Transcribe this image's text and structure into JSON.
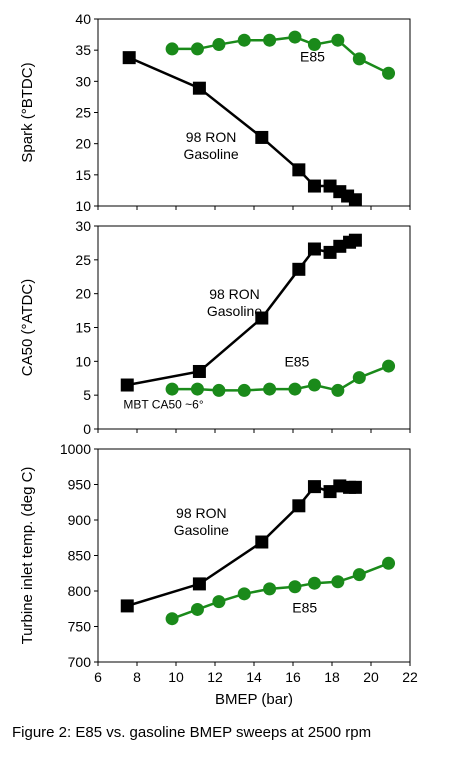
{
  "figure": {
    "caption": "Figure 2: E85 vs. gasoline BMEP sweeps at 2500 rpm",
    "colors": {
      "gasoline": "#000000",
      "e85": "#1a8a1a"
    }
  },
  "chart_data": [
    {
      "type": "line",
      "title": "",
      "xlabel": "",
      "ylabel": "Spark (°BTDC)",
      "xlim": [
        6,
        22
      ],
      "ylim": [
        10,
        40
      ],
      "yticks": [
        10,
        15,
        20,
        25,
        30,
        35,
        40
      ],
      "grid": false,
      "series": [
        {
          "key": "gasoline",
          "x": [
            7.6,
            11.2,
            14.4,
            16.3,
            17.1,
            17.9,
            18.4,
            18.8,
            19.2
          ],
          "y": [
            33.8,
            28.9,
            21.0,
            15.8,
            13.2,
            13.2,
            12.3,
            11.6,
            11.0
          ]
        },
        {
          "key": "e85",
          "x": [
            9.8,
            11.1,
            12.2,
            13.5,
            14.8,
            16.1,
            17.1,
            18.3,
            19.4,
            20.9
          ],
          "y": [
            35.2,
            35.2,
            35.9,
            36.6,
            36.6,
            37.1,
            35.9,
            36.6,
            33.6,
            31.3
          ]
        }
      ],
      "annotations": [
        {
          "key": "e85",
          "lines": [
            "E85"
          ],
          "x": 17.0,
          "y": 33.2
        },
        {
          "key": "gasoline",
          "lines": [
            "98 RON",
            "Gasoline"
          ],
          "x": 11.8,
          "y": 20.3
        }
      ]
    },
    {
      "type": "line",
      "title": "",
      "xlabel": "",
      "ylabel": "CA50 (°ATDC)",
      "xlim": [
        6,
        22
      ],
      "ylim": [
        0,
        30
      ],
      "yticks": [
        0,
        5,
        10,
        15,
        20,
        25,
        30
      ],
      "grid": false,
      "series": [
        {
          "key": "gasoline",
          "x": [
            7.5,
            11.2,
            14.4,
            16.3,
            17.1,
            17.9,
            18.4,
            18.9,
            19.2
          ],
          "y": [
            6.5,
            8.5,
            16.4,
            23.6,
            26.6,
            26.1,
            27.0,
            27.6,
            27.9
          ]
        },
        {
          "key": "e85",
          "x": [
            9.8,
            11.1,
            12.2,
            13.5,
            14.8,
            16.1,
            17.1,
            18.3,
            19.4,
            20.9
          ],
          "y": [
            5.9,
            5.9,
            5.7,
            5.7,
            5.9,
            5.9,
            6.5,
            5.7,
            7.6,
            9.3
          ]
        }
      ],
      "annotations": [
        {
          "key": "gasoline",
          "lines": [
            "98 RON",
            "Gasoline"
          ],
          "x": 13.0,
          "y": 19.2
        },
        {
          "key": "e85",
          "lines": [
            "E85"
          ],
          "x": 16.2,
          "y": 9.2
        },
        {
          "key": "mbt",
          "lines": [
            "MBT  CA50  ~6°"
          ],
          "x": 7.3,
          "y": 3.0
        }
      ]
    },
    {
      "type": "line",
      "title": "",
      "xlabel": "BMEP (bar)",
      "ylabel": "Turbine inlet temp. (deg C)",
      "xlim": [
        6,
        22
      ],
      "ylim": [
        700,
        1000
      ],
      "xticks": [
        6,
        8,
        10,
        12,
        14,
        16,
        18,
        20,
        22
      ],
      "yticks": [
        700,
        750,
        800,
        850,
        900,
        950,
        1000
      ],
      "grid": false,
      "series": [
        {
          "key": "gasoline",
          "x": [
            7.5,
            11.2,
            14.4,
            16.3,
            17.1,
            17.9,
            18.4,
            18.9,
            19.2
          ],
          "y": [
            779,
            810,
            869,
            920,
            947,
            940,
            948,
            946,
            946
          ]
        },
        {
          "key": "e85",
          "x": [
            9.8,
            11.1,
            12.2,
            13.5,
            14.8,
            16.1,
            17.1,
            18.3,
            19.4,
            20.9
          ],
          "y": [
            761,
            774,
            785,
            796,
            803,
            806,
            811,
            813,
            823,
            839
          ]
        }
      ],
      "annotations": [
        {
          "key": "gasoline",
          "lines": [
            "98 RON",
            "Gasoline"
          ],
          "x": 11.3,
          "y": 903
        },
        {
          "key": "e85",
          "lines": [
            "E85"
          ],
          "x": 16.6,
          "y": 770
        }
      ]
    }
  ]
}
